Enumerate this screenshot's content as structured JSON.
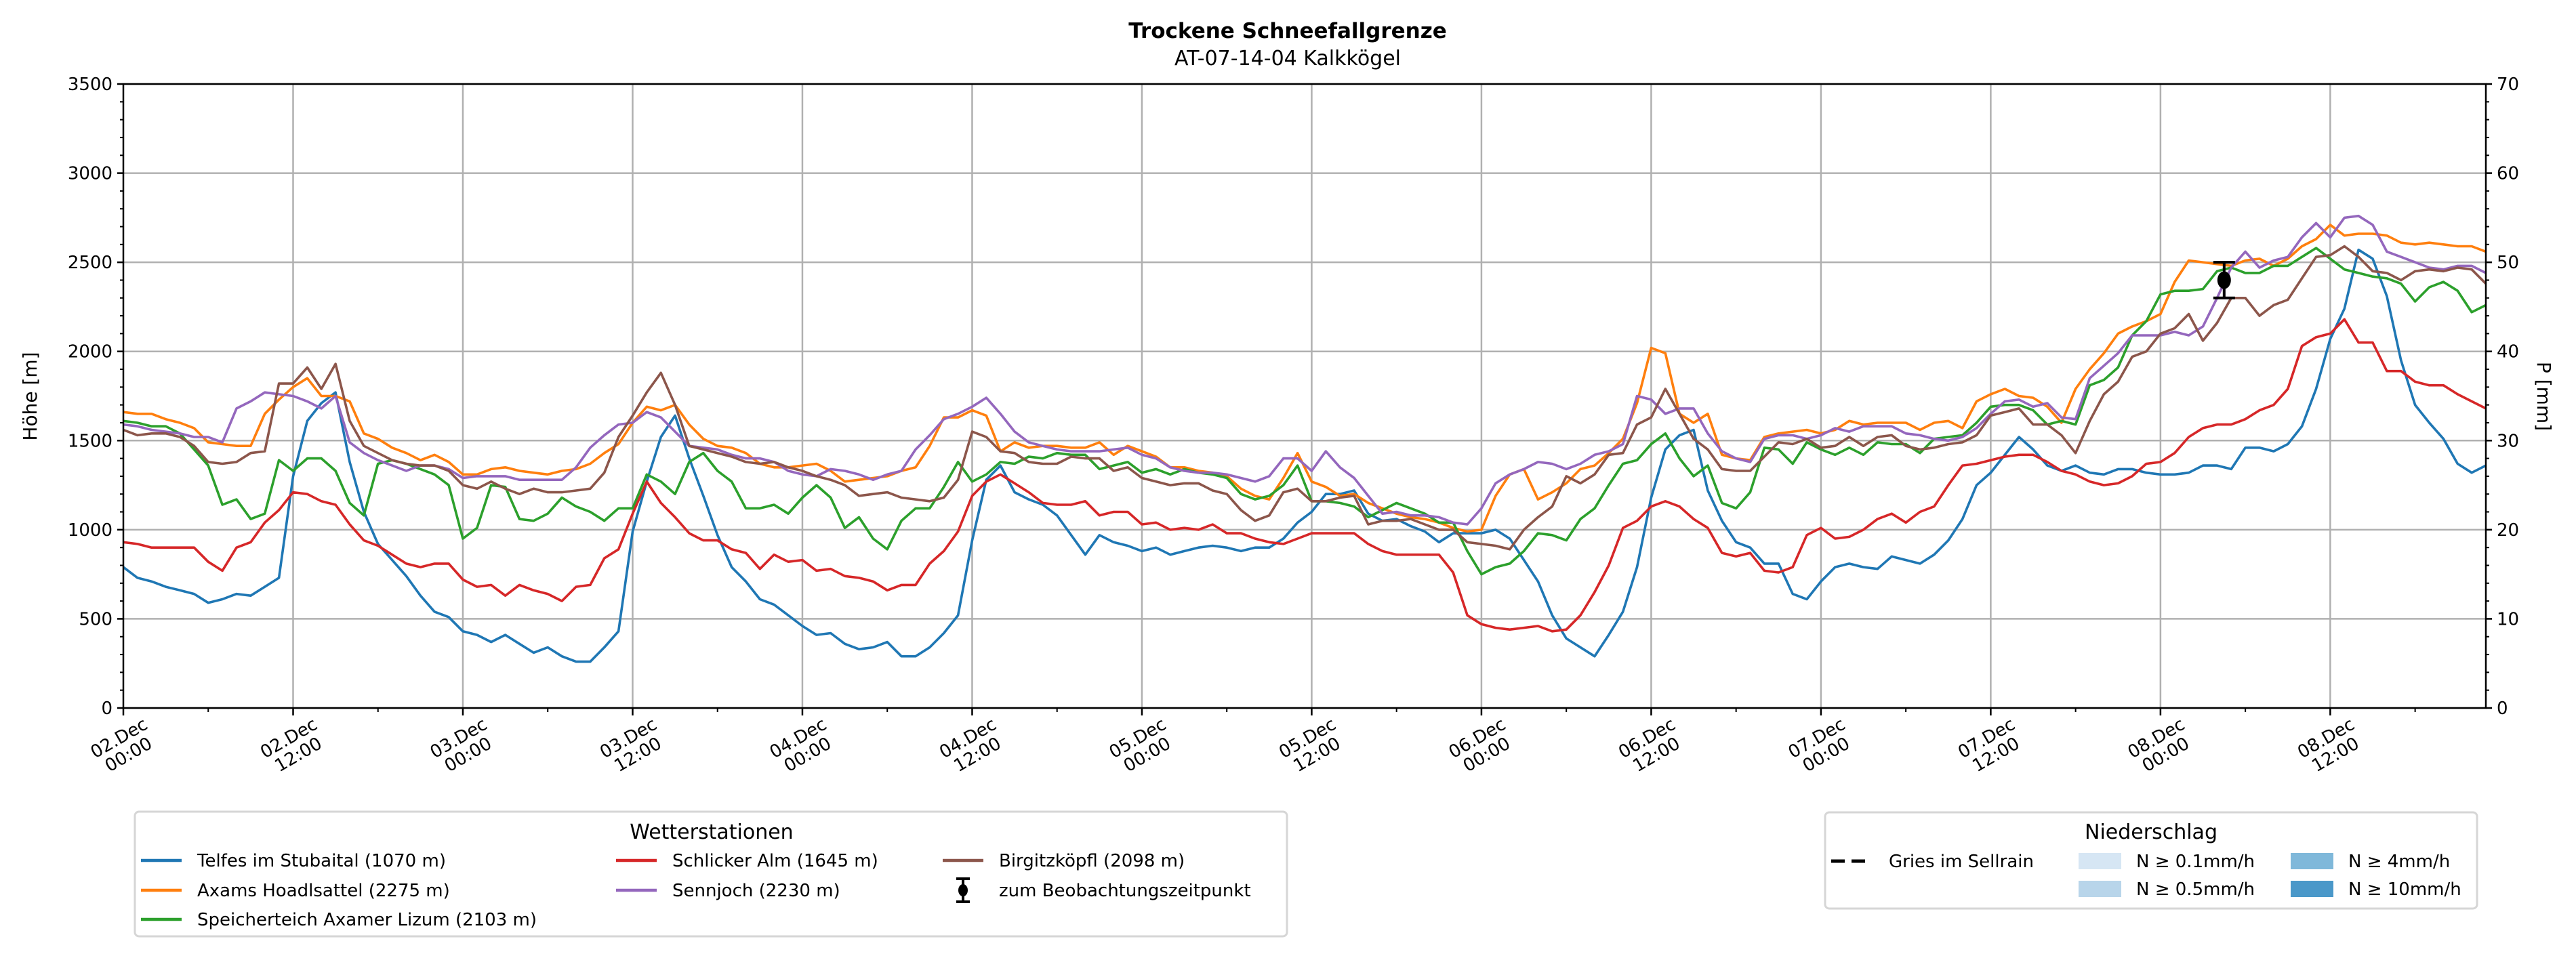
{
  "chart_data": {
    "type": "line",
    "title": "Trockene Schneefallgrenze",
    "subtitle": "AT-07-14-04 Kalkkögel",
    "ylabel": "Höhe [m]",
    "ylabel_right": "P [mm]",
    "xlabel": "",
    "ylim": [
      0,
      3500
    ],
    "ylim_right": [
      0,
      70
    ],
    "yticks": [
      "0",
      "500",
      "1000",
      "1500",
      "2000",
      "2500",
      "3000",
      "3500"
    ],
    "yticks_right": [
      "0",
      "10",
      "20",
      "30",
      "40",
      "50",
      "60",
      "70"
    ],
    "x_unit": "hours since 02.Dec 00:00",
    "x_start": 0,
    "x_step": 1,
    "xlim": [
      0,
      167
    ],
    "xtick_labels": [
      [
        "02.Dec",
        "00:00"
      ],
      [
        "02.Dec",
        "12:00"
      ],
      [
        "03.Dec",
        "00:00"
      ],
      [
        "03.Dec",
        "12:00"
      ],
      [
        "04.Dec",
        "00:00"
      ],
      [
        "04.Dec",
        "12:00"
      ],
      [
        "05.Dec",
        "00:00"
      ],
      [
        "05.Dec",
        "12:00"
      ],
      [
        "06.Dec",
        "00:00"
      ],
      [
        "06.Dec",
        "12:00"
      ],
      [
        "07.Dec",
        "00:00"
      ],
      [
        "07.Dec",
        "12:00"
      ],
      [
        "08.Dec",
        "00:00"
      ],
      [
        "08.Dec",
        "12:00"
      ]
    ],
    "grid": true,
    "series": [
      {
        "name": "Telfes im Stubaital (1070 m)",
        "color": "#1f77b4",
        "values": [
          790,
          730,
          710,
          680,
          660,
          640,
          590,
          610,
          640,
          630,
          680,
          730,
          1300,
          1610,
          1710,
          1770,
          1380,
          1100,
          920,
          830,
          740,
          630,
          540,
          510,
          430,
          410,
          370,
          410,
          360,
          310,
          340,
          290,
          260,
          260,
          340,
          430,
          990,
          1270,
          1520,
          1640,
          1400,
          1190,
          970,
          790,
          710,
          610,
          580,
          520,
          460,
          410,
          420,
          360,
          330,
          340,
          370,
          290,
          290,
          340,
          420,
          520,
          940,
          1280,
          1360,
          1210,
          1170,
          1140,
          1080,
          970,
          860,
          970,
          930,
          910,
          880,
          900,
          860,
          880,
          900,
          910,
          900,
          880,
          900,
          900,
          950,
          1040,
          1100,
          1200,
          1200,
          1220,
          1090,
          1050,
          1060,
          1020,
          990,
          930,
          980,
          980,
          980,
          1000,
          950,
          830,
          710,
          520,
          390,
          340,
          290,
          410,
          540,
          790,
          1180,
          1450,
          1530,
          1560,
          1220,
          1050,
          930,
          900,
          810,
          810,
          640,
          610,
          710,
          790,
          810,
          790,
          780,
          850,
          830,
          810,
          860,
          940,
          1060,
          1250,
          1320,
          1420,
          1520,
          1450,
          1360,
          1330,
          1360,
          1320,
          1310,
          1340,
          1340,
          1320,
          1310,
          1310,
          1320,
          1360,
          1360,
          1340,
          1460,
          1460,
          1440,
          1480,
          1580,
          1790,
          2070,
          2240,
          2570,
          2520,
          2310,
          1950,
          1700,
          1600,
          1510,
          1370,
          1320,
          1360
        ]
      },
      {
        "name": "Axams Hoadlsattel (2275 m)",
        "color": "#ff7f0e",
        "values": [
          1660,
          1650,
          1650,
          1620,
          1600,
          1570,
          1490,
          1480,
          1470,
          1470,
          1650,
          1730,
          1800,
          1850,
          1750,
          1750,
          1720,
          1540,
          1510,
          1460,
          1430,
          1390,
          1420,
          1380,
          1310,
          1310,
          1340,
          1350,
          1330,
          1320,
          1310,
          1330,
          1340,
          1370,
          1430,
          1480,
          1600,
          1690,
          1670,
          1700,
          1590,
          1510,
          1470,
          1460,
          1430,
          1370,
          1350,
          1350,
          1360,
          1370,
          1330,
          1270,
          1280,
          1290,
          1300,
          1330,
          1350,
          1470,
          1630,
          1630,
          1670,
          1640,
          1440,
          1490,
          1460,
          1470,
          1470,
          1460,
          1460,
          1490,
          1420,
          1470,
          1440,
          1410,
          1350,
          1350,
          1330,
          1320,
          1300,
          1230,
          1190,
          1170,
          1290,
          1430,
          1270,
          1240,
          1190,
          1200,
          1150,
          1120,
          1090,
          1070,
          1060,
          1040,
          1010,
          990,
          1000,
          1190,
          1310,
          1340,
          1170,
          1210,
          1260,
          1340,
          1360,
          1430,
          1510,
          1710,
          2020,
          1990,
          1650,
          1600,
          1650,
          1420,
          1400,
          1390,
          1520,
          1540,
          1550,
          1560,
          1540,
          1560,
          1610,
          1590,
          1600,
          1600,
          1600,
          1560,
          1600,
          1610,
          1570,
          1720,
          1760,
          1790,
          1750,
          1740,
          1690,
          1600,
          1790,
          1900,
          1990,
          2100,
          2140,
          2170,
          2210,
          2390,
          2510,
          2500,
          2490,
          2480,
          2510,
          2520,
          2480,
          2520,
          2590,
          2630,
          2710,
          2650,
          2660,
          2660,
          2650,
          2610,
          2600,
          2610,
          2600,
          2590,
          2590,
          2560
        ]
      },
      {
        "name": "Speicherteich Axamer Lizum (2103 m)",
        "color": "#2ca02c",
        "values": [
          1610,
          1600,
          1580,
          1580,
          1540,
          1450,
          1360,
          1140,
          1170,
          1060,
          1090,
          1390,
          1330,
          1400,
          1400,
          1330,
          1150,
          1080,
          1370,
          1390,
          1370,
          1340,
          1310,
          1250,
          950,
          1010,
          1250,
          1240,
          1060,
          1050,
          1090,
          1180,
          1130,
          1100,
          1050,
          1120,
          1120,
          1310,
          1270,
          1200,
          1380,
          1430,
          1330,
          1270,
          1120,
          1120,
          1140,
          1090,
          1180,
          1250,
          1180,
          1010,
          1070,
          950,
          890,
          1050,
          1120,
          1120,
          1240,
          1380,
          1270,
          1310,
          1380,
          1370,
          1410,
          1400,
          1430,
          1420,
          1420,
          1340,
          1360,
          1380,
          1320,
          1340,
          1310,
          1340,
          1320,
          1310,
          1290,
          1200,
          1170,
          1190,
          1250,
          1360,
          1160,
          1160,
          1150,
          1130,
          1070,
          1110,
          1150,
          1120,
          1090,
          1040,
          1040,
          880,
          750,
          790,
          810,
          880,
          980,
          970,
          940,
          1060,
          1120,
          1250,
          1370,
          1390,
          1480,
          1540,
          1400,
          1300,
          1360,
          1150,
          1120,
          1210,
          1460,
          1450,
          1370,
          1490,
          1450,
          1420,
          1460,
          1420,
          1490,
          1480,
          1480,
          1430,
          1510,
          1520,
          1530,
          1600,
          1690,
          1700,
          1700,
          1670,
          1590,
          1610,
          1590,
          1810,
          1840,
          1910,
          2090,
          2170,
          2320,
          2340,
          2340,
          2350,
          2450,
          2470,
          2440,
          2440,
          2480,
          2480,
          2530,
          2580,
          2520,
          2460,
          2440,
          2420,
          2410,
          2380,
          2280,
          2360,
          2390,
          2340,
          2220,
          2260
        ]
      },
      {
        "name": "Schlicker Alm (1645 m)",
        "color": "#d62728",
        "values": [
          930,
          920,
          900,
          900,
          900,
          900,
          820,
          770,
          900,
          930,
          1040,
          1110,
          1210,
          1200,
          1160,
          1140,
          1030,
          940,
          910,
          860,
          810,
          790,
          810,
          810,
          720,
          680,
          690,
          630,
          690,
          660,
          640,
          600,
          680,
          690,
          840,
          890,
          1090,
          1270,
          1150,
          1070,
          980,
          940,
          940,
          890,
          870,
          780,
          860,
          820,
          830,
          770,
          780,
          740,
          730,
          710,
          660,
          690,
          690,
          810,
          880,
          990,
          1190,
          1270,
          1310,
          1260,
          1210,
          1150,
          1140,
          1140,
          1160,
          1080,
          1100,
          1100,
          1030,
          1040,
          1000,
          1010,
          1000,
          1030,
          980,
          980,
          950,
          930,
          920,
          950,
          980,
          980,
          980,
          980,
          920,
          880,
          860,
          860,
          860,
          860,
          760,
          520,
          470,
          450,
          440,
          450,
          460,
          430,
          440,
          520,
          650,
          800,
          1010,
          1050,
          1130,
          1160,
          1130,
          1060,
          1010,
          870,
          850,
          870,
          770,
          760,
          790,
          970,
          1010,
          950,
          960,
          1000,
          1060,
          1090,
          1040,
          1100,
          1130,
          1250,
          1360,
          1370,
          1390,
          1410,
          1420,
          1420,
          1380,
          1330,
          1310,
          1270,
          1250,
          1260,
          1300,
          1370,
          1380,
          1430,
          1520,
          1570,
          1590,
          1590,
          1620,
          1670,
          1700,
          1790,
          2030,
          2080,
          2100,
          2180,
          2050,
          2050,
          1890,
          1890,
          1830,
          1810,
          1810,
          1760,
          1720,
          1680
        ]
      },
      {
        "name": "Sennjoch (2230 m)",
        "color": "#9467bd",
        "values": [
          1590,
          1580,
          1560,
          1550,
          1540,
          1520,
          1520,
          1490,
          1680,
          1720,
          1770,
          1760,
          1750,
          1720,
          1680,
          1750,
          1490,
          1430,
          1390,
          1360,
          1330,
          1360,
          1360,
          1340,
          1290,
          1300,
          1300,
          1300,
          1280,
          1280,
          1280,
          1280,
          1350,
          1460,
          1530,
          1590,
          1600,
          1660,
          1630,
          1550,
          1470,
          1460,
          1450,
          1420,
          1400,
          1400,
          1380,
          1330,
          1310,
          1300,
          1340,
          1330,
          1310,
          1280,
          1310,
          1330,
          1450,
          1530,
          1620,
          1650,
          1690,
          1740,
          1650,
          1550,
          1490,
          1470,
          1450,
          1440,
          1440,
          1440,
          1450,
          1460,
          1420,
          1400,
          1350,
          1330,
          1320,
          1320,
          1310,
          1290,
          1270,
          1300,
          1400,
          1400,
          1330,
          1440,
          1350,
          1290,
          1190,
          1090,
          1100,
          1080,
          1080,
          1070,
          1040,
          1030,
          1120,
          1260,
          1310,
          1340,
          1380,
          1370,
          1340,
          1370,
          1420,
          1440,
          1480,
          1750,
          1730,
          1650,
          1680,
          1680,
          1540,
          1440,
          1400,
          1380,
          1510,
          1530,
          1530,
          1510,
          1530,
          1570,
          1550,
          1580,
          1580,
          1580,
          1540,
          1530,
          1510,
          1500,
          1520,
          1570,
          1650,
          1720,
          1730,
          1690,
          1710,
          1630,
          1620,
          1850,
          1920,
          1990,
          2090,
          2090,
          2090,
          2110,
          2090,
          2140,
          2300,
          2470,
          2560,
          2470,
          2510,
          2530,
          2640,
          2720,
          2640,
          2750,
          2760,
          2710,
          2560,
          2530,
          2500,
          2470,
          2460,
          2480,
          2480,
          2440
        ]
      },
      {
        "name": "Birgitzköpfl (2098 m)",
        "color": "#8c564b",
        "values": [
          1560,
          1530,
          1540,
          1540,
          1520,
          1470,
          1380,
          1370,
          1380,
          1430,
          1440,
          1820,
          1820,
          1910,
          1790,
          1930,
          1610,
          1470,
          1430,
          1390,
          1370,
          1360,
          1360,
          1330,
          1250,
          1230,
          1270,
          1230,
          1200,
          1230,
          1210,
          1210,
          1220,
          1230,
          1320,
          1520,
          1640,
          1770,
          1880,
          1700,
          1470,
          1450,
          1430,
          1410,
          1380,
          1370,
          1380,
          1350,
          1330,
          1300,
          1280,
          1250,
          1190,
          1200,
          1210,
          1180,
          1170,
          1160,
          1180,
          1280,
          1550,
          1520,
          1440,
          1430,
          1380,
          1370,
          1370,
          1410,
          1400,
          1400,
          1330,
          1350,
          1290,
          1270,
          1250,
          1260,
          1260,
          1220,
          1200,
          1110,
          1050,
          1080,
          1210,
          1230,
          1160,
          1160,
          1180,
          1190,
          1030,
          1050,
          1050,
          1060,
          1030,
          1000,
          1000,
          930,
          920,
          910,
          890,
          1000,
          1070,
          1130,
          1300,
          1260,
          1310,
          1420,
          1430,
          1590,
          1630,
          1790,
          1650,
          1510,
          1450,
          1340,
          1330,
          1330,
          1410,
          1490,
          1480,
          1510,
          1460,
          1470,
          1520,
          1470,
          1520,
          1530,
          1470,
          1450,
          1460,
          1480,
          1490,
          1530,
          1640,
          1660,
          1680,
          1590,
          1590,
          1530,
          1430,
          1610,
          1760,
          1830,
          1970,
          2000,
          2100,
          2130,
          2210,
          2060,
          2160,
          2300,
          2300,
          2200,
          2260,
          2290,
          2410,
          2530,
          2540,
          2590,
          2530,
          2450,
          2440,
          2400,
          2450,
          2460,
          2450,
          2470,
          2460,
          2380
        ]
      }
    ],
    "observation": {
      "label": "zum Beobachtungszeitpunkt",
      "x": 148.5,
      "y": 2400,
      "err": 100,
      "color": "#000000"
    },
    "legend_stations": {
      "title": "Wetterstationen",
      "placement": "bottom-left, below plot"
    },
    "legend_precip": {
      "title": "Niederschlag",
      "placement": "bottom-right, below plot",
      "line_label": "Gries im Sellrain",
      "line_color": "#000000",
      "classes": [
        {
          "label": "N ≥ 0.1mm/h",
          "color": "#d6e6f4"
        },
        {
          "label": "N ≥ 0.5mm/h",
          "color": "#b8d5ea"
        },
        {
          "label": "N ≥ 4mm/h",
          "color": "#7fb8da"
        },
        {
          "label": "N ≥ 10mm/h",
          "color": "#4a98c9"
        }
      ]
    }
  }
}
